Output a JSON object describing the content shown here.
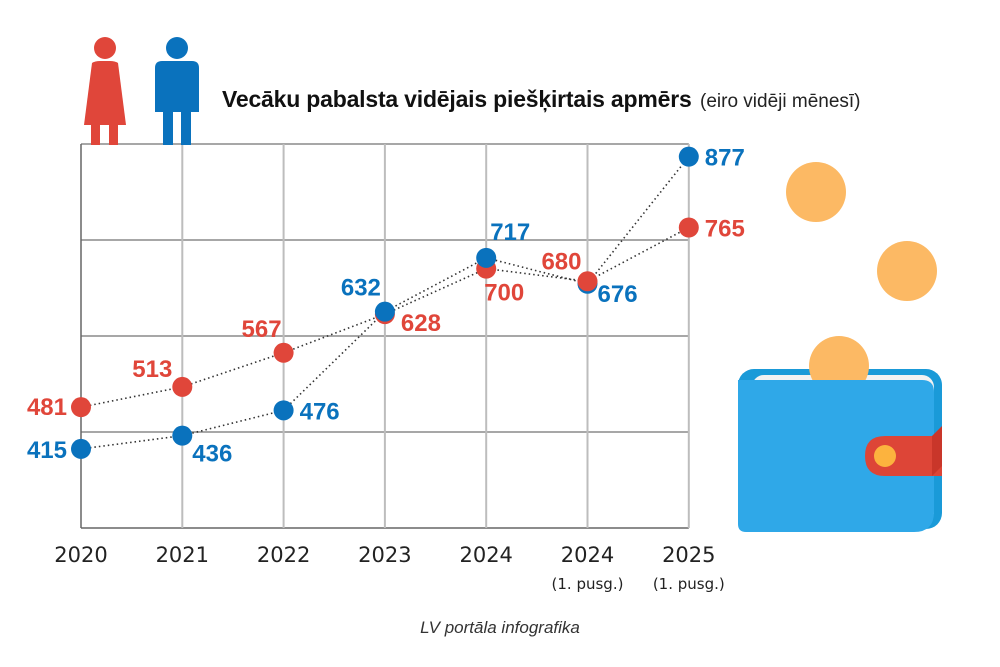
{
  "title": {
    "main": "Vecāku pabalsta vidējais piešķirtais apmērs",
    "sub": "(eiro vidēji mēnesī)"
  },
  "credit": "LV portāla infografika",
  "colors": {
    "female": "#e0463a",
    "male": "#0a72bd",
    "grid": "#bdbdbd",
    "axis": "#666666",
    "coin": "#fcb964",
    "wallet": "#2fa8e8",
    "wallet_back": "#1a9ad8",
    "wallet_clasp": "#dd4537"
  },
  "icons": [
    "female-figure-icon",
    "male-figure-icon",
    "coin-icon",
    "wallet-icon"
  ],
  "chart_data": {
    "type": "line",
    "title": "Vecāku pabalsta vidējais piešķirtais apmērs (eiro vidēji mēnesī)",
    "xlabel": "",
    "ylabel": "",
    "categories": [
      "2020",
      "2021",
      "2022",
      "2023",
      "2024",
      "2024",
      "2025"
    ],
    "category_sublabels": [
      "",
      "",
      "",
      "",
      "",
      "(1. pusg.)",
      "(1. pusg.)"
    ],
    "ylim": [
      290,
      897
    ],
    "grid": true,
    "legend": "icons top-left (female figure = red, male figure = blue)",
    "series": [
      {
        "name": "Sievietes",
        "color": "#e0463a",
        "values": [
          481,
          513,
          567,
          628,
          700,
          680,
          765
        ]
      },
      {
        "name": "Vīrieši",
        "color": "#0a72bd",
        "values": [
          415,
          436,
          476,
          632,
          717,
          676,
          877
        ]
      }
    ]
  }
}
